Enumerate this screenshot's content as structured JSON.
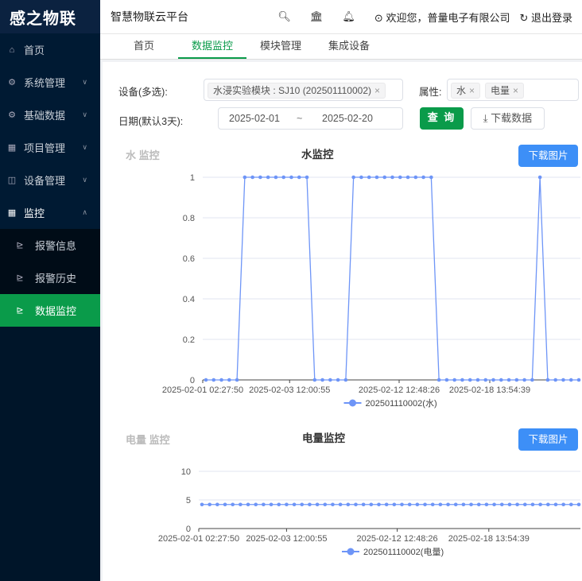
{
  "sidebar": {
    "logo": "感之物联",
    "items": [
      {
        "label": "首页",
        "icon": "home-icon"
      },
      {
        "label": "系统管理",
        "icon": "gear-icon"
      },
      {
        "label": "基础数据",
        "icon": "gear-icon"
      },
      {
        "label": "项目管理",
        "icon": "grid-icon"
      },
      {
        "label": "设备管理",
        "icon": "device-icon"
      },
      {
        "label": "监控",
        "icon": "grid-icon"
      }
    ],
    "sub_items": [
      {
        "label": "报警信息"
      },
      {
        "label": "报警历史"
      },
      {
        "label": "数据监控"
      }
    ]
  },
  "header": {
    "title": "智慧物联云平台",
    "welcome": "欢迎您，普量电子有限公司",
    "logout": "退出登录"
  },
  "tabs": [
    {
      "label": "首页"
    },
    {
      "label": "数据监控"
    },
    {
      "label": "模块管理"
    },
    {
      "label": "集成设备"
    }
  ],
  "filters": {
    "device_label": "设备(多选):",
    "device_tag": "水浸实验模块 : SJ10 (202501110002)",
    "attr_label": "属性:",
    "attr_tags": [
      "水",
      "电量"
    ],
    "date_label": "日期(默认3天):",
    "date_start": "2025-02-01",
    "date_sep": "~",
    "date_end": "2025-02-20",
    "query": "查 询",
    "download_data": "下载数据"
  },
  "colors": {
    "accent": "#0a9b4a",
    "series": "#6e95f7",
    "button": "#3d8ff7"
  },
  "chart_data": [
    {
      "type": "line",
      "section_label": "水 监控",
      "title": "水监控",
      "download": "下载图片",
      "ylim": [
        0,
        1
      ],
      "yticks": [
        "0",
        "0.2",
        "0.4",
        "0.6",
        "0.8",
        "1"
      ],
      "xtick_labels": [
        "2025-02-01 02:27:50",
        "2025-02-03 12:00:55",
        "2025-02-12 12:48:26",
        "2025-02-18 13:54:39"
      ],
      "series": [
        {
          "name": "202501110002(水)",
          "values": [
            0,
            0,
            0,
            0,
            0,
            1,
            1,
            1,
            1,
            1,
            1,
            1,
            1,
            1,
            0,
            0,
            0,
            0,
            0,
            1,
            1,
            1,
            1,
            1,
            1,
            1,
            1,
            1,
            1,
            1,
            0,
            0,
            0,
            0,
            0,
            0,
            0,
            0,
            0,
            0,
            0,
            0,
            0,
            1,
            0,
            0,
            0,
            0,
            0
          ]
        }
      ]
    },
    {
      "type": "line",
      "section_label": "电量 监控",
      "title": "电量监控",
      "download": "下载图片",
      "ylim": [
        0,
        10
      ],
      "yticks": [
        "0",
        "5",
        "10"
      ],
      "xtick_labels": [
        "2025-02-01 02:27:50",
        "2025-02-03 12:00:55",
        "2025-02-12 12:48:26",
        "2025-02-18 13:54:39"
      ],
      "series": [
        {
          "name": "202501110002(电量)",
          "values": [
            4.2,
            4.2,
            4.2,
            4.2,
            4.2,
            4.2,
            4.2,
            4.2,
            4.2,
            4.2,
            4.2,
            4.2,
            4.2,
            4.2,
            4.2,
            4.2,
            4.2,
            4.2,
            4.2,
            4.2,
            4.2,
            4.2,
            4.2,
            4.2,
            4.2,
            4.2,
            4.2,
            4.2,
            4.2,
            4.2,
            4.2,
            4.2,
            4.2,
            4.2,
            4.2,
            4.2,
            4.2,
            4.2,
            4.2,
            4.2,
            4.2,
            4.2,
            4.2,
            4.2,
            4.2,
            4.2,
            4.2,
            4.2,
            4.2,
            4.2
          ]
        }
      ]
    }
  ]
}
